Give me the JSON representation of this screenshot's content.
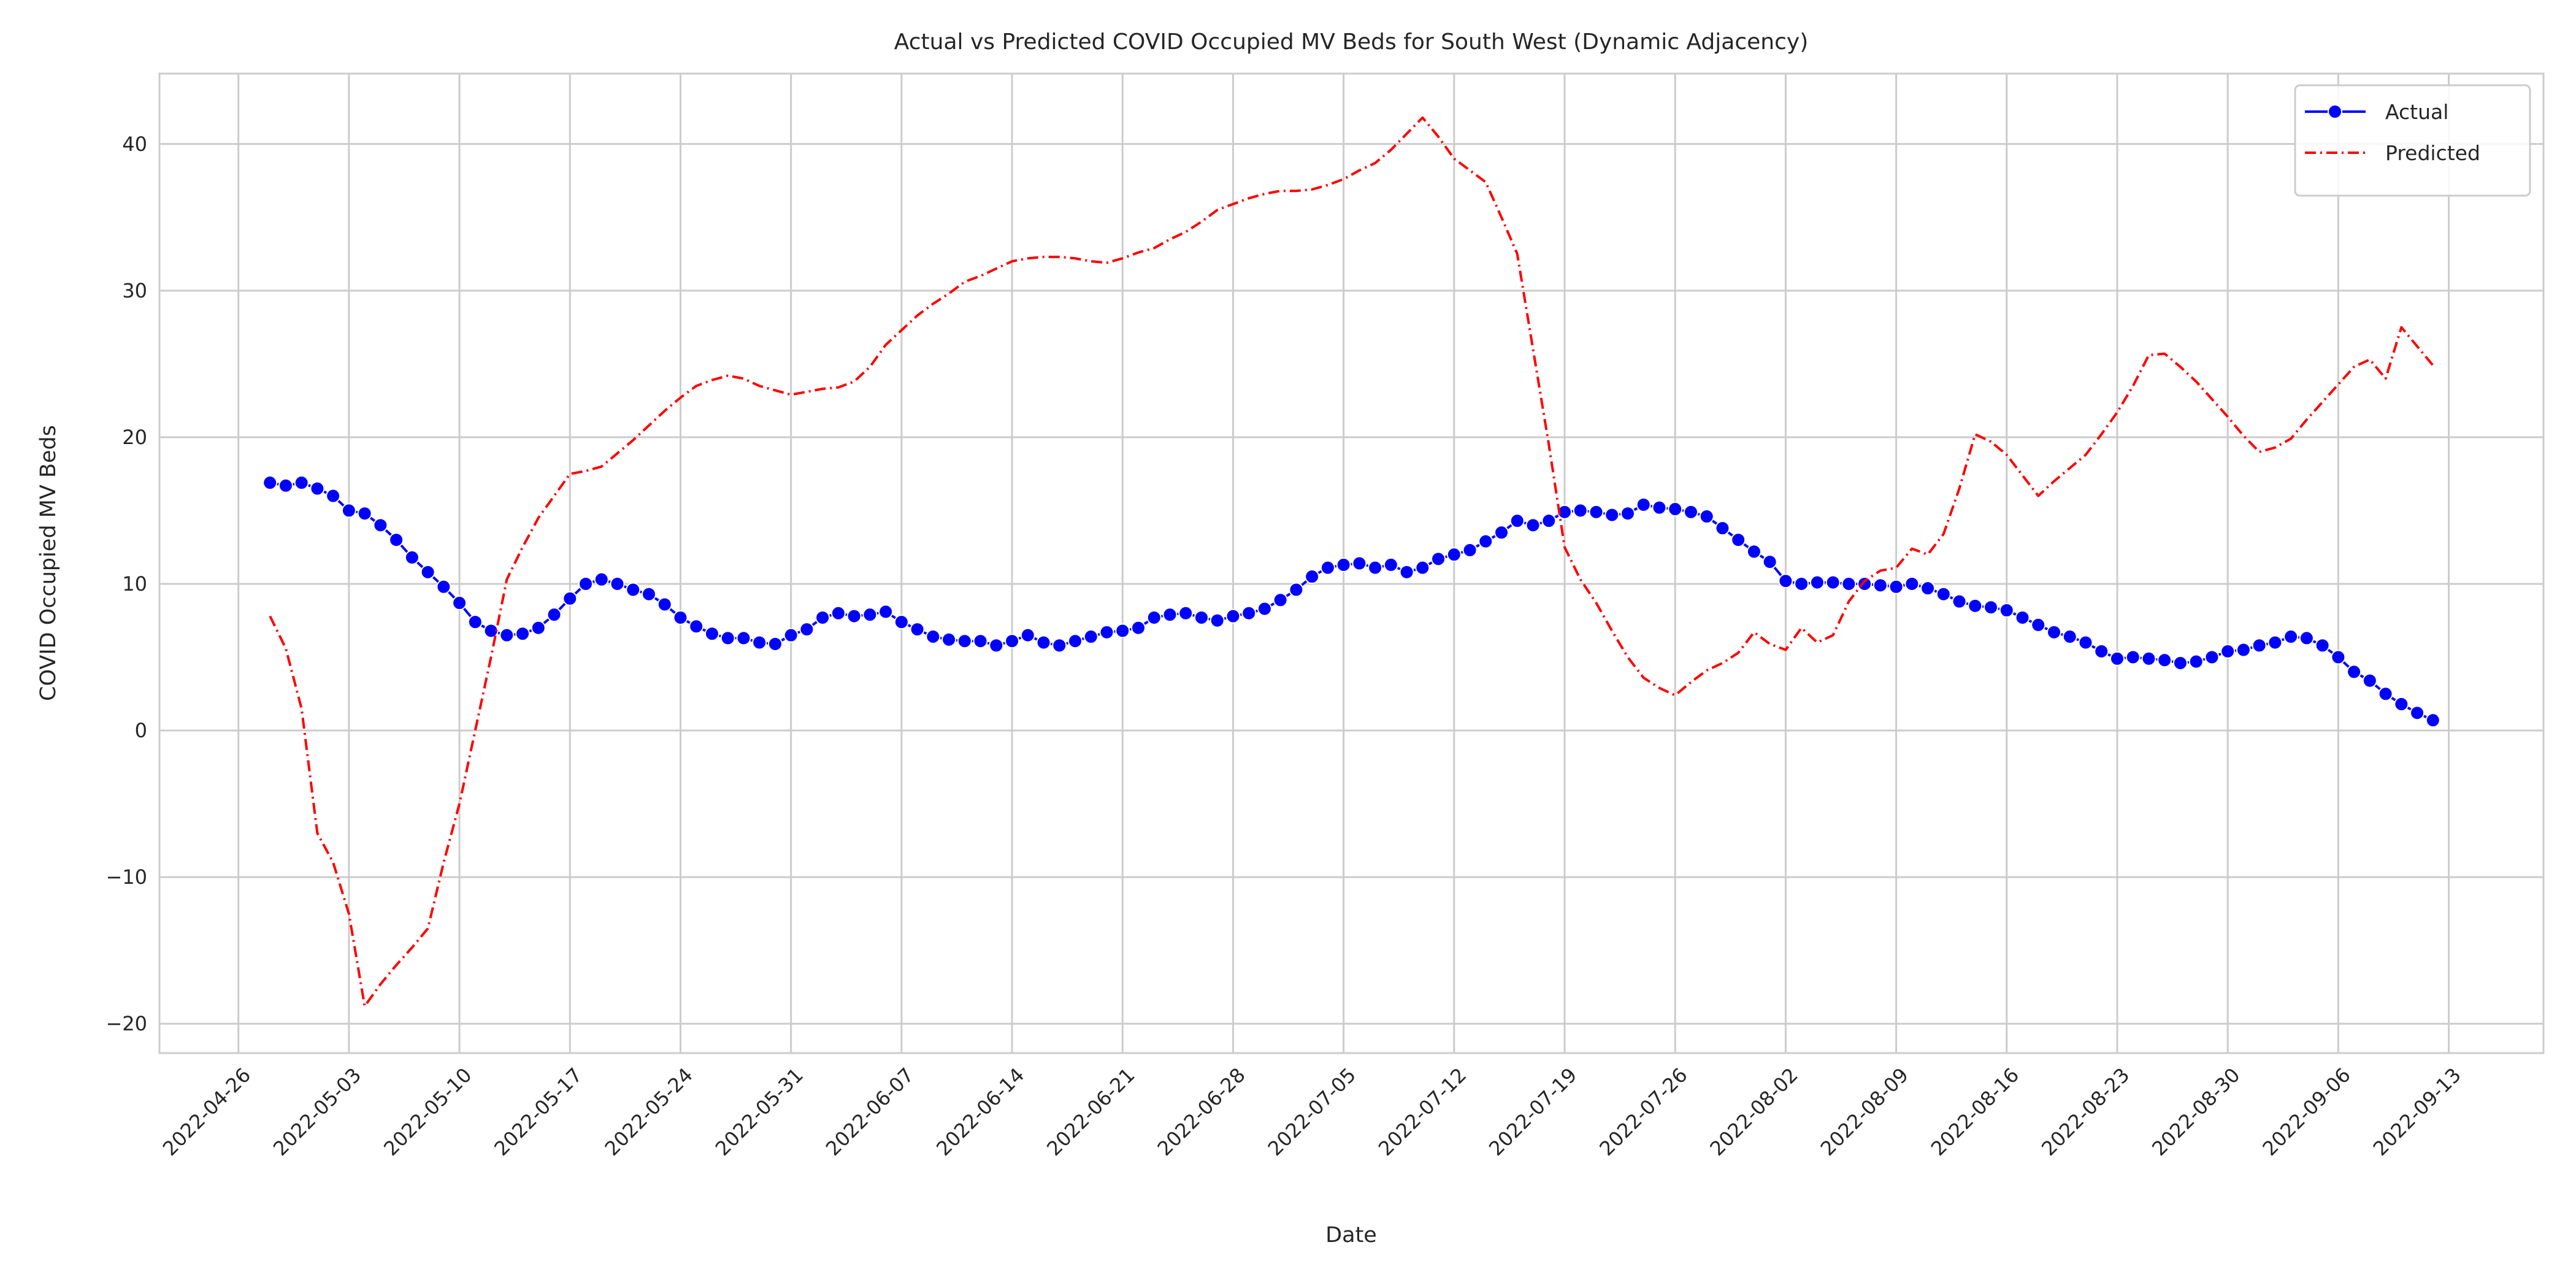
{
  "chart_data": {
    "type": "line",
    "title": "Actual vs Predicted COVID Occupied MV Beds for South West (Dynamic Adjacency)",
    "xlabel": "Date",
    "ylabel": "COVID Occupied MV Beds",
    "grid": true,
    "legend": "upper right",
    "xlim": [
      "2022-04-21",
      "2022-09-19"
    ],
    "xticks": [
      "2022-04-26",
      "2022-05-03",
      "2022-05-10",
      "2022-05-17",
      "2022-05-24",
      "2022-05-31",
      "2022-06-07",
      "2022-06-14",
      "2022-06-21",
      "2022-06-28",
      "2022-07-05",
      "2022-07-12",
      "2022-07-19",
      "2022-07-26",
      "2022-08-02",
      "2022-08-09",
      "2022-08-16",
      "2022-08-23",
      "2022-08-30",
      "2022-09-06",
      "2022-09-13"
    ],
    "ylim": [
      -22,
      44.8
    ],
    "yticks": [
      {
        "value": -20,
        "label": "−20"
      },
      {
        "value": -10,
        "label": "−10"
      },
      0,
      10,
      20,
      30,
      40
    ],
    "x": [
      "2022-04-28",
      "2022-04-29",
      "2022-04-30",
      "2022-05-01",
      "2022-05-02",
      "2022-05-03",
      "2022-05-04",
      "2022-05-05",
      "2022-05-06",
      "2022-05-07",
      "2022-05-08",
      "2022-05-09",
      "2022-05-10",
      "2022-05-11",
      "2022-05-12",
      "2022-05-13",
      "2022-05-14",
      "2022-05-15",
      "2022-05-16",
      "2022-05-17",
      "2022-05-18",
      "2022-05-19",
      "2022-05-20",
      "2022-05-21",
      "2022-05-22",
      "2022-05-23",
      "2022-05-24",
      "2022-05-25",
      "2022-05-26",
      "2022-05-27",
      "2022-05-28",
      "2022-05-29",
      "2022-05-30",
      "2022-05-31",
      "2022-06-01",
      "2022-06-02",
      "2022-06-03",
      "2022-06-04",
      "2022-06-05",
      "2022-06-06",
      "2022-06-07",
      "2022-06-08",
      "2022-06-09",
      "2022-06-10",
      "2022-06-11",
      "2022-06-12",
      "2022-06-13",
      "2022-06-14",
      "2022-06-15",
      "2022-06-16",
      "2022-06-17",
      "2022-06-18",
      "2022-06-19",
      "2022-06-20",
      "2022-06-21",
      "2022-06-22",
      "2022-06-23",
      "2022-06-24",
      "2022-06-25",
      "2022-06-26",
      "2022-06-27",
      "2022-06-28",
      "2022-06-29",
      "2022-06-30",
      "2022-07-01",
      "2022-07-02",
      "2022-07-03",
      "2022-07-04",
      "2022-07-05",
      "2022-07-06",
      "2022-07-07",
      "2022-07-08",
      "2022-07-09",
      "2022-07-10",
      "2022-07-11",
      "2022-07-12",
      "2022-07-13",
      "2022-07-14",
      "2022-07-15",
      "2022-07-16",
      "2022-07-17",
      "2022-07-18",
      "2022-07-19",
      "2022-07-20",
      "2022-07-21",
      "2022-07-22",
      "2022-07-23",
      "2022-07-24",
      "2022-07-25",
      "2022-07-26",
      "2022-07-27",
      "2022-07-28",
      "2022-07-29",
      "2022-07-30",
      "2022-07-31",
      "2022-08-01",
      "2022-08-02",
      "2022-08-03",
      "2022-08-04",
      "2022-08-05",
      "2022-08-06",
      "2022-08-07",
      "2022-08-08",
      "2022-08-09",
      "2022-08-10",
      "2022-08-11",
      "2022-08-12",
      "2022-08-13",
      "2022-08-14",
      "2022-08-15",
      "2022-08-16",
      "2022-08-17",
      "2022-08-18",
      "2022-08-19",
      "2022-08-20",
      "2022-08-21",
      "2022-08-22",
      "2022-08-23",
      "2022-08-24",
      "2022-08-25",
      "2022-08-26",
      "2022-08-27",
      "2022-08-28",
      "2022-08-29",
      "2022-08-30",
      "2022-08-31",
      "2022-09-01",
      "2022-09-02",
      "2022-09-03",
      "2022-09-04",
      "2022-09-05",
      "2022-09-06",
      "2022-09-07",
      "2022-09-08",
      "2022-09-09",
      "2022-09-10",
      "2022-09-11",
      "2022-09-12"
    ],
    "series": [
      {
        "name": "Actual",
        "color": "#0000ff",
        "marker": "o",
        "linestyle": "-",
        "values": [
          16.9,
          16.7,
          16.9,
          16.5,
          16.0,
          15.0,
          14.8,
          14.0,
          13.0,
          11.8,
          10.8,
          9.8,
          8.7,
          7.4,
          6.8,
          6.5,
          6.6,
          7.0,
          7.9,
          9.0,
          10.0,
          10.3,
          10.0,
          9.6,
          9.3,
          8.6,
          7.7,
          7.1,
          6.6,
          6.3,
          6.3,
          6.0,
          5.9,
          6.5,
          6.9,
          7.7,
          8.0,
          7.8,
          7.9,
          8.1,
          7.4,
          6.9,
          6.4,
          6.2,
          6.1,
          6.1,
          5.8,
          6.1,
          6.5,
          6.0,
          5.8,
          6.1,
          6.4,
          6.7,
          6.8,
          7.0,
          7.7,
          7.9,
          8.0,
          7.7,
          7.5,
          7.8,
          8.0,
          8.3,
          8.9,
          9.6,
          10.5,
          11.1,
          11.3,
          11.4,
          11.1,
          11.3,
          10.8,
          11.1,
          11.7,
          12.0,
          12.3,
          12.9,
          13.5,
          14.3,
          14.0,
          14.3,
          14.9,
          15.0,
          14.9,
          14.7,
          14.8,
          15.4,
          15.2,
          15.1,
          14.9,
          14.6,
          13.8,
          13.0,
          12.2,
          11.5,
          10.2,
          10.0,
          10.1,
          10.1,
          10.0,
          10.0,
          9.9,
          9.8,
          10.0,
          9.7,
          9.3,
          8.8,
          8.5,
          8.4,
          8.2,
          7.7,
          7.2,
          6.7,
          6.4,
          6.0,
          5.4,
          4.9,
          5.0,
          4.9,
          4.8,
          4.6,
          4.7,
          5.0,
          5.4,
          5.5,
          5.8,
          6.0,
          6.4,
          6.3,
          5.8,
          5.0,
          4.0,
          3.4,
          2.5,
          1.8,
          1.2,
          0.7
        ]
      },
      {
        "name": "Predicted",
        "color": "#ff0000",
        "linestyle": "-.",
        "values": [
          7.8,
          5.6,
          1.5,
          -7.0,
          -9.0,
          -12.5,
          -18.8,
          -17.3,
          -16.0,
          -14.8,
          -13.5,
          -9.0,
          -5.0,
          0.0,
          5.0,
          10.3,
          12.5,
          14.5,
          16.0,
          17.5,
          17.7,
          18.0,
          18.9,
          19.8,
          20.8,
          21.8,
          22.7,
          23.5,
          23.9,
          24.2,
          24.0,
          23.5,
          23.2,
          22.9,
          23.1,
          23.3,
          23.4,
          23.8,
          24.8,
          26.3,
          27.3,
          28.3,
          29.1,
          29.8,
          30.6,
          31.0,
          31.5,
          32.0,
          32.2,
          32.3,
          32.3,
          32.2,
          32.0,
          31.9,
          32.2,
          32.6,
          32.9,
          33.5,
          34.0,
          34.7,
          35.5,
          35.9,
          36.3,
          36.6,
          36.8,
          36.8,
          36.9,
          37.2,
          37.6,
          38.2,
          38.7,
          39.6,
          40.7,
          41.8,
          40.5,
          39.0,
          38.2,
          37.4,
          35.0,
          32.5,
          26.0,
          19.5,
          12.5,
          10.3,
          8.7,
          6.8,
          5.0,
          3.6,
          2.9,
          2.4,
          3.3,
          4.1,
          4.6,
          5.3,
          6.7,
          5.9,
          5.5,
          7.0,
          6.0,
          6.5,
          8.8,
          10.2,
          10.9,
          11.1,
          12.4,
          12.0,
          13.4,
          16.5,
          20.2,
          19.7,
          18.8,
          17.4,
          16.0,
          17.0,
          17.9,
          18.8,
          20.2,
          21.7,
          23.5,
          25.6,
          25.7,
          24.8,
          23.8,
          22.6,
          21.4,
          20.1,
          19.0,
          19.3,
          19.9,
          21.2,
          22.4,
          23.6,
          24.8,
          25.3,
          24.0,
          27.5,
          26.2,
          24.9
        ]
      }
    ]
  }
}
